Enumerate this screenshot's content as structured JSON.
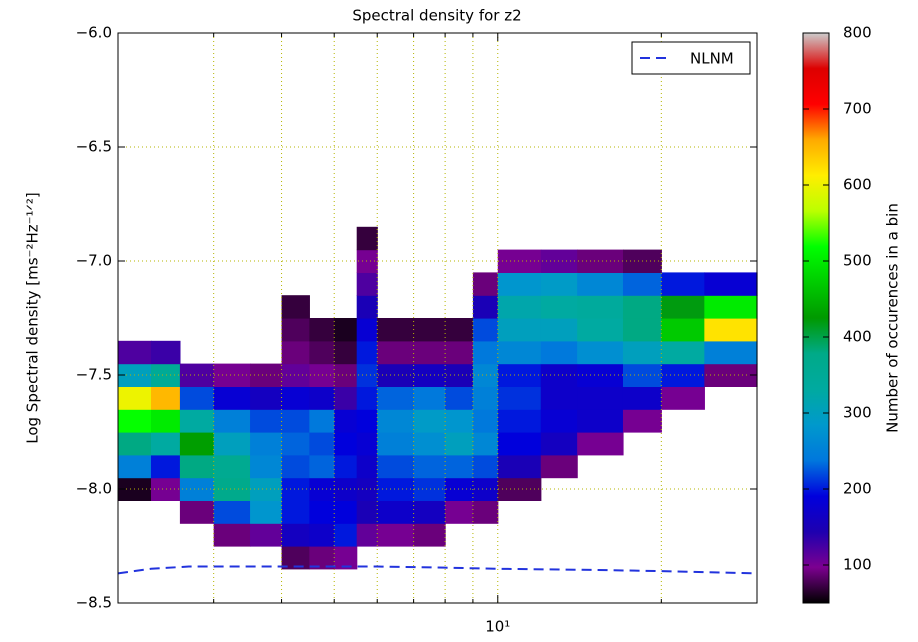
{
  "chart_data": {
    "type": "heatmap",
    "title": "Spectral density for z2",
    "ylabel": "Log Spectral density [ms⁻²Hz⁻¹ᐟ²]",
    "colorbar_label": "Number of occurences in a bin",
    "log_x": true,
    "grid": true,
    "xlim": [
      2,
      30
    ],
    "xticks": [
      {
        "value": 10,
        "label": "10¹"
      }
    ],
    "x_minor_grid": [
      3,
      4,
      5,
      6,
      7,
      8,
      9,
      20
    ],
    "ylim": [
      -8.5,
      -6.0
    ],
    "yticks": [
      {
        "value": -8.5,
        "label": "−8.5"
      },
      {
        "value": -8.0,
        "label": "−8.0"
      },
      {
        "value": -7.5,
        "label": "−7.5"
      },
      {
        "value": -7.0,
        "label": "−7.0"
      },
      {
        "value": -6.5,
        "label": "−6.5"
      },
      {
        "value": -6.0,
        "label": "−6.0"
      }
    ],
    "clim": [
      50,
      800
    ],
    "colorbar_ticks": [
      100,
      200,
      300,
      400,
      500,
      600,
      700,
      800
    ],
    "colormap": [
      "#000000",
      "#7c0090",
      "#1e00b0",
      "#0000dd",
      "#0077dd",
      "#0099cc",
      "#00aaa0",
      "#00aa88",
      "#009900",
      "#00cc00",
      "#00ff00",
      "#bbff00",
      "#ffee00",
      "#ffaa00",
      "#ff0000",
      "#dd0000",
      "#cccccc"
    ],
    "xbins": [
      2,
      2.3,
      2.6,
      3,
      3.5,
      4,
      4.5,
      5,
      5.5,
      6,
      7,
      8,
      9,
      10,
      12,
      14,
      17,
      20,
      24,
      30
    ],
    "ybins": [
      -8.35,
      -8.25,
      -8.15,
      -8.05,
      -7.95,
      -7.85,
      -7.75,
      -7.65,
      -7.55,
      -7.45,
      -7.35,
      -7.25,
      -7.15,
      -7.05,
      -6.95,
      -6.85
    ],
    "z": [
      [
        null,
        null,
        null,
        60,
        250,
        380,
        520,
        600,
        300,
        120,
        null,
        null,
        null,
        null,
        null
      ],
      [
        null,
        null,
        null,
        100,
        200,
        330,
        500,
        650,
        350,
        130,
        null,
        null,
        null,
        null,
        null
      ],
      [
        null,
        null,
        90,
        250,
        380,
        430,
        330,
        220,
        120,
        null,
        null,
        null,
        null,
        null,
        null
      ],
      [
        null,
        90,
        220,
        370,
        360,
        300,
        250,
        180,
        100,
        null,
        null,
        null,
        null,
        null,
        null
      ],
      [
        null,
        110,
        280,
        300,
        260,
        250,
        220,
        160,
        90,
        null,
        null,
        null,
        null,
        null,
        null
      ],
      [
        80,
        160,
        200,
        200,
        220,
        230,
        220,
        180,
        110,
        90,
        80,
        70,
        null,
        null,
        null
      ],
      [
        90,
        170,
        190,
        180,
        230,
        220,
        240,
        170,
        100,
        80,
        70,
        null,
        null,
        null,
        null
      ],
      [
        100,
        200,
        190,
        170,
        200,
        190,
        180,
        130,
        90,
        70,
        60,
        null,
        null,
        null,
        null
      ],
      [
        null,
        110,
        150,
        160,
        170,
        180,
        190,
        200,
        210,
        200,
        180,
        150,
        120,
        100,
        70
      ],
      [
        null,
        100,
        170,
        200,
        220,
        250,
        260,
        230,
        150,
        90,
        70,
        null,
        null,
        null,
        null
      ],
      [
        null,
        90,
        160,
        210,
        230,
        270,
        290,
        240,
        160,
        90,
        70,
        null,
        null,
        null,
        null
      ],
      [
        null,
        null,
        100,
        180,
        230,
        300,
        280,
        220,
        150,
        90,
        70,
        null,
        null,
        null,
        null
      ],
      [
        null,
        null,
        90,
        170,
        220,
        260,
        240,
        250,
        260,
        240,
        220,
        150,
        90,
        null,
        null
      ],
      [
        null,
        null,
        null,
        80,
        150,
        190,
        200,
        210,
        200,
        260,
        300,
        320,
        280,
        100,
        null
      ],
      [
        null,
        null,
        null,
        null,
        90,
        160,
        180,
        170,
        170,
        240,
        300,
        330,
        290,
        110,
        null
      ],
      [
        null,
        null,
        null,
        null,
        null,
        100,
        170,
        170,
        180,
        270,
        330,
        340,
        260,
        90,
        null
      ],
      [
        null,
        null,
        null,
        null,
        null,
        null,
        100,
        170,
        220,
        300,
        380,
        380,
        230,
        80,
        null
      ],
      [
        null,
        null,
        null,
        null,
        null,
        null,
        null,
        100,
        200,
        330,
        470,
        420,
        200,
        null,
        null
      ],
      [
        null,
        null,
        null,
        null,
        null,
        null,
        null,
        null,
        90,
        250,
        620,
        500,
        180,
        null,
        null
      ]
    ],
    "legend_loc": "upper right",
    "series": [
      {
        "name": "NLNM",
        "color": "#2233dd",
        "style": "dashed",
        "x": [
          2,
          2.3,
          2.7,
          3,
          4,
          5,
          6,
          8,
          10,
          15,
          20,
          30
        ],
        "values": [
          -8.37,
          -8.35,
          -8.34,
          -8.34,
          -8.34,
          -8.34,
          -8.34,
          -8.345,
          -8.35,
          -8.355,
          -8.36,
          -8.37
        ]
      }
    ]
  }
}
